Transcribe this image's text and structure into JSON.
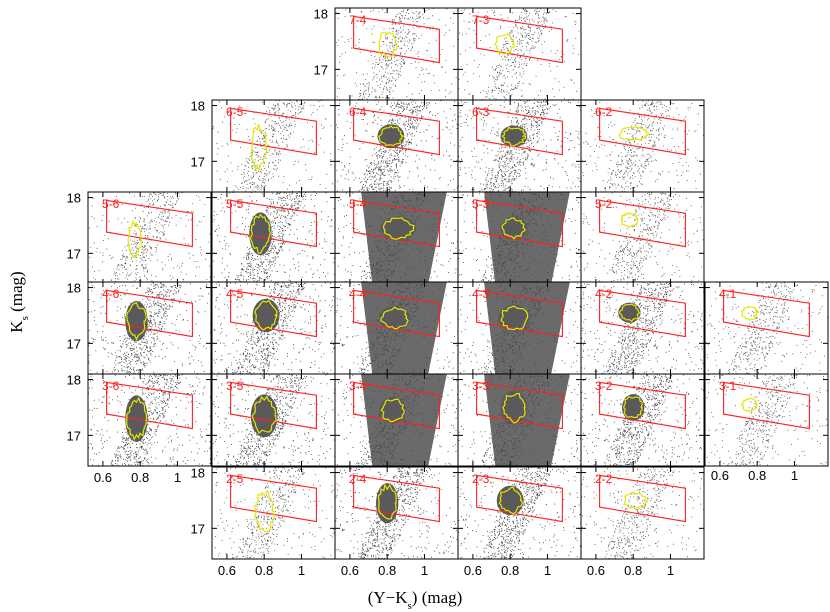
{
  "chart_data": {
    "type": "scatter",
    "description_of_layout": "grid of Hess-diagram panels labelled row-column",
    "xlabel": "(Y−K",
    "xlabel_sub": "s",
    "xlabel_unit": ") (mag)",
    "ylabel": "K",
    "ylabel_sub": "s",
    "ylabel_unit": " (mag)",
    "xlim": [
      0.52,
      1.18
    ],
    "ylim": [
      18.1,
      16.45
    ],
    "x_ticks": [
      0.6,
      0.8,
      1
    ],
    "x_tick_labels": [
      "0.6",
      "0.8",
      "1"
    ],
    "y_ticks": [
      17,
      18
    ],
    "y_tick_labels": [
      "17",
      "18"
    ],
    "selection_box": {
      "color": "#ff2020",
      "corners": [
        [
          0.62,
          17.38
        ],
        [
          0.62,
          17.95
        ],
        [
          1.08,
          17.72
        ],
        [
          1.08,
          17.12
        ]
      ]
    },
    "contour_color": "#e6e600",
    "panels": [
      {
        "id": "7-4",
        "row": 7,
        "col": 4,
        "density": "low",
        "contour": {
          "x": 0.8,
          "y": 17.45,
          "rx": 0.05,
          "ry": 0.22
        }
      },
      {
        "id": "7-3",
        "row": 7,
        "col": 3,
        "density": "low",
        "contour": {
          "x": 0.77,
          "y": 17.45,
          "rx": 0.05,
          "ry": 0.18
        }
      },
      {
        "id": "6-5",
        "row": 6,
        "col": 5,
        "density": "low",
        "contour": {
          "x": 0.77,
          "y": 17.25,
          "rx": 0.04,
          "ry": 0.38
        }
      },
      {
        "id": "6-4",
        "row": 6,
        "col": 4,
        "density": "medium",
        "contour": {
          "x": 0.82,
          "y": 17.45,
          "rx": 0.06,
          "ry": 0.18
        }
      },
      {
        "id": "6-3",
        "row": 6,
        "col": 3,
        "density": "medium",
        "contour": {
          "x": 0.82,
          "y": 17.45,
          "rx": 0.06,
          "ry": 0.16
        }
      },
      {
        "id": "6-2",
        "row": 6,
        "col": 2,
        "density": "low",
        "contour": {
          "x": 0.8,
          "y": 17.5,
          "rx": 0.08,
          "ry": 0.12
        }
      },
      {
        "id": "5-6",
        "row": 5,
        "col": 6,
        "density": "low",
        "contour": {
          "x": 0.77,
          "y": 17.25,
          "rx": 0.035,
          "ry": 0.3
        }
      },
      {
        "id": "5-5",
        "row": 5,
        "col": 5,
        "density": "medium",
        "contour": {
          "x": 0.78,
          "y": 17.35,
          "rx": 0.05,
          "ry": 0.32
        }
      },
      {
        "id": "5-4",
        "row": 5,
        "col": 4,
        "density": "high",
        "contour": {
          "x": 0.86,
          "y": 17.45,
          "rx": 0.08,
          "ry": 0.18
        }
      },
      {
        "id": "5-3",
        "row": 5,
        "col": 3,
        "density": "high",
        "contour": {
          "x": 0.82,
          "y": 17.45,
          "rx": 0.06,
          "ry": 0.17
        }
      },
      {
        "id": "5-2",
        "row": 5,
        "col": 2,
        "density": "low",
        "contour": {
          "x": 0.78,
          "y": 17.6,
          "rx": 0.045,
          "ry": 0.12
        }
      },
      {
        "id": "4-6",
        "row": 4,
        "col": 6,
        "density": "medium",
        "contour": {
          "x": 0.78,
          "y": 17.4,
          "rx": 0.05,
          "ry": 0.3
        }
      },
      {
        "id": "4-5",
        "row": 4,
        "col": 5,
        "density": "medium",
        "contour": {
          "x": 0.81,
          "y": 17.5,
          "rx": 0.06,
          "ry": 0.25
        }
      },
      {
        "id": "4-4",
        "row": 4,
        "col": 4,
        "density": "high",
        "contour": {
          "x": 0.84,
          "y": 17.45,
          "rx": 0.07,
          "ry": 0.18
        }
      },
      {
        "id": "4-3",
        "row": 4,
        "col": 3,
        "density": "high",
        "contour": {
          "x": 0.82,
          "y": 17.45,
          "rx": 0.07,
          "ry": 0.2
        }
      },
      {
        "id": "4-2",
        "row": 4,
        "col": 2,
        "density": "medium",
        "contour": {
          "x": 0.78,
          "y": 17.55,
          "rx": 0.05,
          "ry": 0.15
        }
      },
      {
        "id": "4-1",
        "row": 4,
        "col": 1,
        "density": "low",
        "contour": {
          "x": 0.76,
          "y": 17.55,
          "rx": 0.04,
          "ry": 0.12
        }
      },
      {
        "id": "3-6",
        "row": 3,
        "col": 6,
        "density": "medium",
        "contour": {
          "x": 0.78,
          "y": 17.3,
          "rx": 0.05,
          "ry": 0.35
        }
      },
      {
        "id": "3-5",
        "row": 3,
        "col": 5,
        "density": "medium",
        "contour": {
          "x": 0.8,
          "y": 17.35,
          "rx": 0.06,
          "ry": 0.32
        }
      },
      {
        "id": "3-4",
        "row": 3,
        "col": 4,
        "density": "high",
        "contour": {
          "x": 0.83,
          "y": 17.45,
          "rx": 0.06,
          "ry": 0.2
        }
      },
      {
        "id": "3-3",
        "row": 3,
        "col": 3,
        "density": "high",
        "contour": {
          "x": 0.82,
          "y": 17.5,
          "rx": 0.06,
          "ry": 0.25
        }
      },
      {
        "id": "3-2",
        "row": 3,
        "col": 2,
        "density": "medium",
        "contour": {
          "x": 0.8,
          "y": 17.5,
          "rx": 0.05,
          "ry": 0.2
        }
      },
      {
        "id": "3-1",
        "row": 3,
        "col": 1,
        "density": "low",
        "contour": {
          "x": 0.76,
          "y": 17.55,
          "rx": 0.04,
          "ry": 0.12
        }
      },
      {
        "id": "2-5",
        "row": 2,
        "col": 5,
        "density": "low",
        "contour": {
          "x": 0.8,
          "y": 17.3,
          "rx": 0.05,
          "ry": 0.35
        }
      },
      {
        "id": "2-4",
        "row": 2,
        "col": 4,
        "density": "medium",
        "contour": {
          "x": 0.8,
          "y": 17.45,
          "rx": 0.05,
          "ry": 0.3
        }
      },
      {
        "id": "2-3",
        "row": 2,
        "col": 3,
        "density": "medium",
        "contour": {
          "x": 0.8,
          "y": 17.5,
          "rx": 0.06,
          "ry": 0.22
        }
      },
      {
        "id": "2-2",
        "row": 2,
        "col": 2,
        "density": "low",
        "contour": {
          "x": 0.81,
          "y": 17.5,
          "rx": 0.06,
          "ry": 0.14
        }
      }
    ]
  }
}
